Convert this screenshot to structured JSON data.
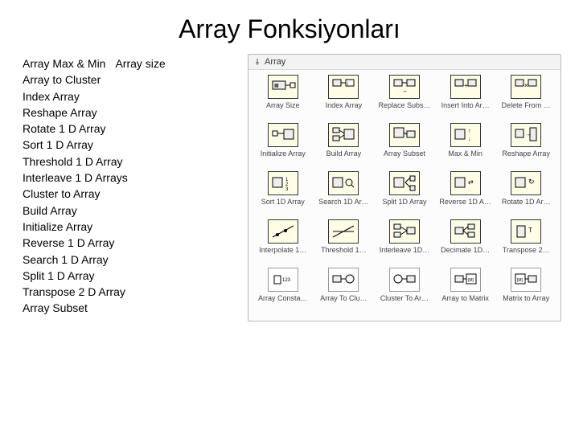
{
  "title": "Array Fonksiyonları",
  "left_list": {
    "row1": {
      "a": "Array Max & Min",
      "b": "Array size"
    },
    "items": [
      "Array to Cluster",
      "Index Array",
      "Reshape Array",
      "Rotate 1 D Array",
      "Sort 1 D Array",
      "Threshold 1 D Array",
      "Interleave 1 D Arrays",
      "Cluster to Array",
      "Build Array",
      "Initialize Array",
      "Reverse 1 D Array",
      "Search 1 D Array",
      "Split 1 D Array",
      "Transpose 2 D Array",
      "Array Subset"
    ]
  },
  "palette": {
    "header": "Array",
    "colors": {
      "panel_bg": "#fcfcfc",
      "icon_bg": "#fffde6",
      "icon_border": "#333333",
      "label_color": "#444444"
    },
    "rows": [
      [
        {
          "label": "Array Size",
          "icon": "size"
        },
        {
          "label": "Index Array",
          "icon": "index"
        },
        {
          "label": "Replace Subs…",
          "icon": "replace"
        },
        {
          "label": "Insert Into Ar…",
          "icon": "insert"
        },
        {
          "label": "Delete From …",
          "icon": "delete"
        }
      ],
      [
        {
          "label": "Initialize Array",
          "icon": "init"
        },
        {
          "label": "Build Array",
          "icon": "build"
        },
        {
          "label": "Array Subset",
          "icon": "subset"
        },
        {
          "label": "Max & Min",
          "icon": "maxmin"
        },
        {
          "label": "Reshape Array",
          "icon": "reshape"
        }
      ],
      [
        {
          "label": "Sort 1D Array",
          "icon": "sort"
        },
        {
          "label": "Search 1D Ar…",
          "icon": "search"
        },
        {
          "label": "Split 1D Array",
          "icon": "split"
        },
        {
          "label": "Reverse 1D A…",
          "icon": "reverse"
        },
        {
          "label": "Rotate 1D Ar…",
          "icon": "rotate"
        }
      ],
      [
        {
          "label": "Interpolate 1…",
          "icon": "interp"
        },
        {
          "label": "Threshold 1…",
          "icon": "thresh"
        },
        {
          "label": "Interleave 1D…",
          "icon": "interleave"
        },
        {
          "label": "Decimate 1D…",
          "icon": "decimate"
        },
        {
          "label": "Transpose 2…",
          "icon": "transpose"
        }
      ],
      [
        {
          "label": "Array Consta…",
          "icon": "const"
        },
        {
          "label": "Array To Clu…",
          "icon": "tocluster"
        },
        {
          "label": "Cluster To Ar…",
          "icon": "toarray"
        },
        {
          "label": "Array to Matrix",
          "icon": "tomatrix"
        },
        {
          "label": "Matrix to Array",
          "icon": "frommatrix"
        }
      ]
    ]
  }
}
